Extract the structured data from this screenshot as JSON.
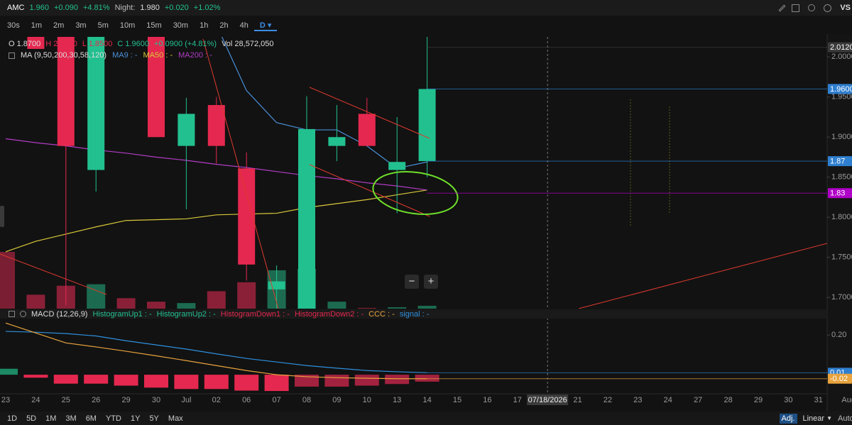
{
  "header": {
    "symbol": "AMC",
    "price": "1.960",
    "change": "+0.090",
    "change_pct": "+4.81%",
    "night_label": "Night:",
    "night_price": "1.980",
    "night_change": "+0.020",
    "night_change_pct": "+1.02%",
    "compare": "VS"
  },
  "timeframes": [
    "30s",
    "1m",
    "2m",
    "3m",
    "5m",
    "10m",
    "15m",
    "30m",
    "1h",
    "2h",
    "4h",
    "D"
  ],
  "ohlc_legend": {
    "open": "O 1.8700",
    "high": "H 2.0300",
    "low": "L 1.8500",
    "close": "C 1.9600",
    "change": "+0.0900 (+4.81%)",
    "volume": "Vol 28,572,050"
  },
  "ma_legend": {
    "title": "MA (9,50,200,30,58,120)",
    "ma9": "MA9 : -",
    "ma50": "MA50 : -",
    "ma200": "MA200 : -"
  },
  "macd_legend": {
    "title": "MACD (12,26,9)",
    "up1": "HistogramUp1 : -",
    "up2": "HistogramUp2 : -",
    "down1": "HistogramDown1 : -",
    "down2": "HistogramDown2 : -",
    "ccc": "CCC : -",
    "signal": "signal : -"
  },
  "zoom": {
    "out": "−",
    "in": "+"
  },
  "ranges": [
    "1D",
    "5D",
    "1M",
    "3M",
    "6M",
    "YTD",
    "1Y",
    "5Y",
    "Max"
  ],
  "scale_options": {
    "adjusted": "Adj.",
    "scale": "Linear",
    "auto": "Auto"
  },
  "chart_data": [
    {
      "type": "candlestick",
      "categories": [
        "23",
        "24",
        "25",
        "26",
        "29",
        "30",
        "Jul",
        "02",
        "06",
        "07",
        "08",
        "09",
        "10",
        "13",
        "14",
        "15",
        "16",
        "17",
        null,
        "21",
        "22",
        "23",
        "24",
        "27",
        "28",
        "29",
        "30",
        "31",
        "Aug"
      ],
      "crosshair_label": "07/18/2026",
      "open": [
        null,
        2.05,
        2.04,
        1.859,
        null,
        2.05,
        1.889,
        1.94,
        1.861,
        1.71,
        1.68,
        1.889,
        1.929,
        1.859,
        1.87,
        null,
        null,
        null,
        null,
        null,
        null,
        null,
        null,
        null,
        null,
        null,
        null,
        null,
        null
      ],
      "high": [
        null,
        2.06,
        2.05,
        2.05,
        null,
        2.06,
        1.949,
        1.95,
        1.881,
        1.74,
        1.951,
        1.94,
        1.949,
        1.925,
        2.03,
        null,
        null,
        null,
        null,
        null,
        null,
        null,
        null,
        null,
        null,
        null,
        null,
        null,
        null
      ],
      "low": [
        null,
        2.01,
        1.69,
        1.832,
        null,
        1.9,
        1.81,
        1.867,
        1.721,
        1.68,
        1.67,
        1.87,
        1.889,
        1.805,
        1.85,
        null,
        null,
        null,
        null,
        null,
        null,
        null,
        null,
        null,
        null,
        null,
        null,
        null,
        null
      ],
      "close": [
        null,
        2.01,
        1.889,
        2.04,
        null,
        1.9,
        1.929,
        1.889,
        1.741,
        1.72,
        1.91,
        1.9,
        1.889,
        1.869,
        1.96,
        null,
        null,
        null,
        null,
        null,
        null,
        null,
        null,
        null,
        null,
        null,
        null,
        null,
        null
      ],
      "up_color": "#22c08f",
      "down_color": "#e5284f",
      "volume": [
        570000000,
        140000000,
        230000000,
        245000000,
        105000000,
        70000000,
        56000000,
        175000000,
        265000000,
        385000000,
        400000000,
        70000000,
        7000000,
        14000000,
        28572050,
        null,
        null,
        null,
        null,
        null,
        null,
        null,
        null,
        null,
        null,
        null,
        null,
        null,
        null
      ],
      "volume_colors": [
        "#7a1f33",
        "#8a2038",
        "#8a2038",
        "#1c6b50",
        "#8a2038",
        "#8a2038",
        "#1c6b50",
        "#8a2038",
        "#8a2038",
        "#1c6b50",
        "#1c6b50",
        "#1c6b50",
        "#8a2038",
        "#1c6b50",
        "#1c6b50",
        null,
        null,
        null,
        null,
        null,
        null,
        null,
        null,
        null,
        null,
        null,
        null,
        null,
        null
      ],
      "series": [
        {
          "color": "#4a90d9",
          "values": [
            null,
            null,
            null,
            null,
            null,
            null,
            null,
            2.04,
            1.958,
            1.918,
            1.909,
            1.909,
            1.889,
            1.861,
            1.869,
            null,
            null,
            null,
            null,
            null,
            null,
            null,
            null,
            null,
            null,
            null,
            null,
            null,
            null
          ]
        },
        {
          "color": "#d9c83a",
          "values": [
            1.757,
            1.77,
            1.779,
            1.788,
            1.796,
            1.797,
            1.798,
            1.803,
            1.804,
            1.805,
            1.812,
            1.817,
            1.822,
            1.828,
            1.834,
            null,
            null,
            null,
            null,
            null,
            null,
            null,
            null,
            null,
            null,
            null,
            null,
            null,
            null
          ]
        },
        {
          "color": "#b13cc4",
          "values": [
            1.898,
            1.893,
            1.889,
            1.884,
            1.88,
            1.875,
            1.871,
            1.866,
            1.862,
            1.857,
            1.852,
            1.848,
            1.843,
            1.839,
            1.834,
            null,
            null,
            null,
            null,
            null,
            null,
            null,
            null,
            null,
            null,
            null,
            null,
            null,
            null
          ]
        }
      ],
      "ylim": [
        1.686,
        2.025
      ],
      "yticks": [
        {
          "value": 2.0,
          "label": "2.0000"
        },
        {
          "value": 1.95,
          "label": "1.9500"
        },
        {
          "value": 1.9,
          "label": "1.9000"
        },
        {
          "value": 1.85,
          "label": "1.8500"
        },
        {
          "value": 1.8,
          "label": "1.8000"
        },
        {
          "value": 1.75,
          "label": "1.7500"
        },
        {
          "value": 1.7,
          "label": "1.7000"
        }
      ],
      "price_badges": [
        {
          "value": 2.012,
          "label": "2.0120",
          "color": "#3a3a3a"
        },
        {
          "value": 1.96,
          "label": "1.9600",
          "color": "#2f7fd0"
        },
        {
          "value": 1.87,
          "label": "1.87",
          "color": "#2f7fd0"
        },
        {
          "value": 1.83,
          "label": "1.83",
          "color": "#b000c8"
        }
      ]
    },
    {
      "type": "macd",
      "histogram": {
        "values": [
          0.03,
          -0.015,
          -0.045,
          -0.045,
          -0.055,
          -0.065,
          -0.072,
          -0.072,
          -0.08,
          -0.082,
          -0.06,
          -0.06,
          -0.055,
          -0.047,
          -0.035
        ],
        "colors": [
          "#1c8a64",
          "#e5284f",
          "#e5284f",
          "#e5284f",
          "#e5284f",
          "#e5284f",
          "#e5284f",
          "#e5284f",
          "#e5284f",
          "#e5284f",
          "#a3223f",
          "#a3223f",
          "#a3223f",
          "#a3223f",
          "#a3223f"
        ]
      },
      "series": [
        {
          "color": "#2f8fdc",
          "values": [
            0.218,
            0.214,
            0.207,
            0.195,
            0.171,
            0.15,
            0.129,
            0.105,
            0.082,
            0.064,
            0.046,
            0.033,
            0.021,
            0.015,
            0.01
          ]
        },
        {
          "color": "#e8a33d",
          "values": [
            0.26,
            0.21,
            0.16,
            0.14,
            0.118,
            0.095,
            0.071,
            0.046,
            0.021,
            0.0,
            -0.01,
            -0.015,
            -0.018,
            -0.02,
            -0.02
          ]
        }
      ],
      "ylim": [
        -0.096,
        0.279
      ],
      "yticks": [
        {
          "value": 0.2,
          "label": "0.20"
        }
      ],
      "price_badges": [
        {
          "value": 0.01,
          "label": "0.01",
          "color": "#2f7fd0"
        },
        {
          "value": -0.02,
          "label": "-0.02",
          "color": "#e8a33d"
        }
      ]
    }
  ]
}
